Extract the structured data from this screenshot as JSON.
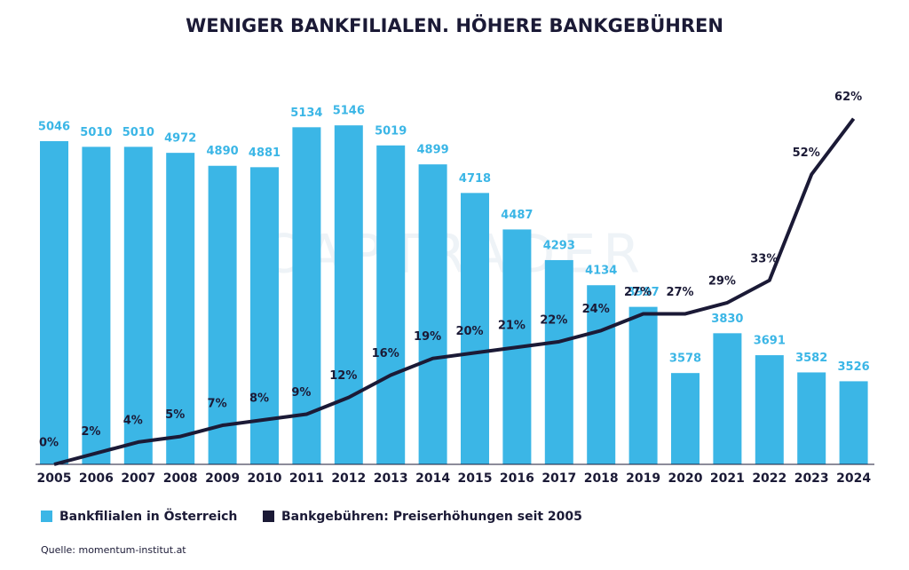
{
  "chart_data": {
    "type": "bar",
    "title": "WENIGER BANKFILIALEN. HÖHERE BANKGEBÜHREN",
    "watermark": "CAPTRADER",
    "source": "Quelle: momentum-institut.at",
    "categories": [
      "2005",
      "2006",
      "2007",
      "2008",
      "2009",
      "2010",
      "2011",
      "2012",
      "2013",
      "2014",
      "2015",
      "2016",
      "2017",
      "2018",
      "2019",
      "2020",
      "2021",
      "2022",
      "2023",
      "2024"
    ],
    "series": [
      {
        "name": "Bankfilialen in Österreich",
        "type": "bar",
        "color": "#3bb6e6",
        "values": [
          5046,
          5010,
          5010,
          4972,
          4890,
          4881,
          5134,
          5146,
          5019,
          4899,
          4718,
          4487,
          4293,
          4134,
          3997,
          3578,
          3830,
          3691,
          3582,
          3526
        ]
      },
      {
        "name": "Bankgebühren: Preiserhöhungen seit 2005",
        "type": "line",
        "axis": "y2",
        "color": "#1b1a36",
        "values": [
          0,
          2,
          4,
          5,
          7,
          8,
          9,
          12,
          16,
          19,
          20,
          21,
          22,
          24,
          27,
          27,
          29,
          33,
          52,
          62
        ],
        "value_labels": [
          "0%",
          "2%",
          "4%",
          "5%",
          "7%",
          "8%",
          "9%",
          "12%",
          "16%",
          "19%",
          "20%",
          "21%",
          "22%",
          "24%",
          "27%",
          "27%",
          "29%",
          "33%",
          "52%",
          "62%"
        ]
      }
    ],
    "ylim": [
      3000,
      5400
    ],
    "y2lim": [
      0,
      68
    ]
  }
}
